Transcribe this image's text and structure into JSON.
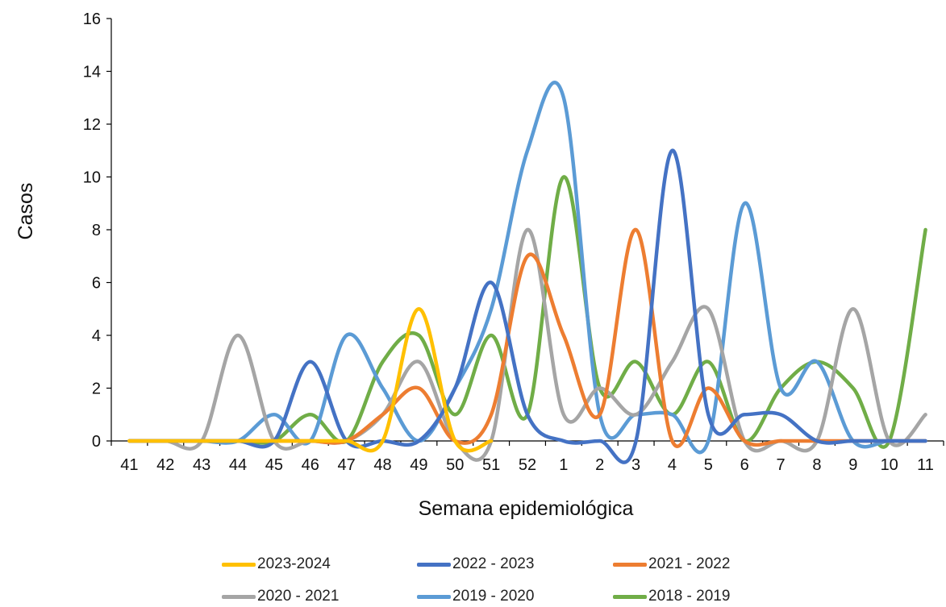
{
  "chart_data": {
    "type": "line",
    "title": "",
    "xlabel": "Semana epidemiológica",
    "ylabel": "Casos",
    "ylim": [
      0,
      16
    ],
    "yticks": [
      0,
      2,
      4,
      6,
      8,
      10,
      12,
      14,
      16
    ],
    "categories": [
      "41",
      "42",
      "43",
      "44",
      "45",
      "46",
      "47",
      "48",
      "49",
      "50",
      "51",
      "52",
      "1",
      "2",
      "3",
      "4",
      "5",
      "6",
      "7",
      "8",
      "9",
      "10",
      "11"
    ],
    "grid": false,
    "legend_position": "bottom",
    "series": [
      {
        "name": "2023-2024",
        "color": "#FFC000",
        "values": [
          0,
          0,
          0,
          0,
          0,
          0,
          0,
          0,
          5,
          0,
          0,
          null,
          null,
          null,
          null,
          null,
          null,
          null,
          null,
          null,
          null,
          null,
          null
        ]
      },
      {
        "name": "2022 - 2023",
        "color": "#4472C4",
        "values": [
          0,
          0,
          0,
          0,
          0,
          3,
          0,
          0,
          0,
          2,
          6,
          1,
          0,
          0,
          0,
          11,
          1,
          1,
          1,
          0,
          0,
          0,
          0
        ]
      },
      {
        "name": "2021 - 2022",
        "color": "#ED7D31",
        "values": [
          0,
          0,
          0,
          0,
          0,
          0,
          0,
          1,
          2,
          0,
          1,
          7,
          4,
          1,
          8,
          0,
          2,
          0,
          0,
          0,
          0,
          0,
          0
        ]
      },
      {
        "name": "2020 - 2021",
        "color": "#A5A5A5",
        "values": [
          0,
          0,
          0,
          4,
          0,
          0,
          0,
          1,
          3,
          0,
          0,
          8,
          1,
          2,
          1,
          3,
          5,
          0,
          0,
          0,
          5,
          0,
          1
        ]
      },
      {
        "name": "2019 - 2020",
        "color": "#5B9BD5",
        "values": [
          0,
          0,
          0,
          0,
          1,
          0,
          4,
          2,
          0,
          2,
          5,
          11,
          13,
          1,
          1,
          1,
          0,
          9,
          2,
          3,
          0,
          0,
          0
        ]
      },
      {
        "name": "2018 - 2019",
        "color": "#70AD47",
        "values": [
          0,
          0,
          0,
          0,
          0,
          1,
          0,
          3,
          4,
          1,
          4,
          1,
          10,
          2,
          3,
          1,
          3,
          0,
          2,
          3,
          2,
          0,
          8
        ]
      }
    ]
  }
}
